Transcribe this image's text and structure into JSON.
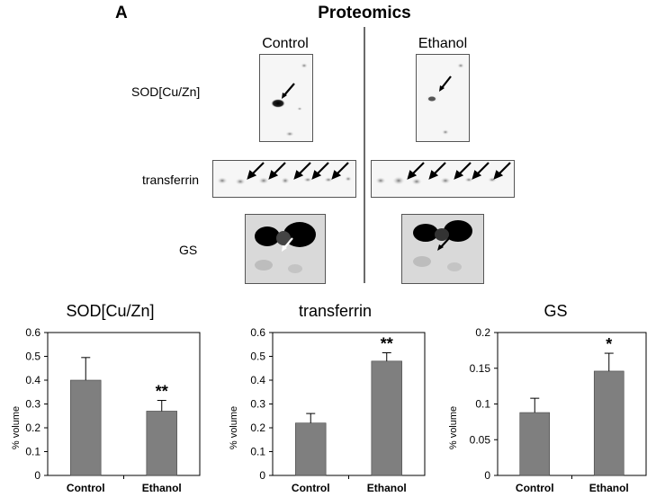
{
  "figure": {
    "panel_letter": "A",
    "title": "Proteomics",
    "column_labels": [
      "Control",
      "Ethanol"
    ],
    "row_labels": [
      "SOD[Cu/Zn]",
      "transferrin",
      "GS"
    ]
  },
  "chart_data": [
    {
      "type": "bar",
      "title": "SOD[Cu/Zn]",
      "categories": [
        "Control",
        "Ethanol"
      ],
      "values": [
        0.4,
        0.27
      ],
      "errors": [
        0.095,
        0.045
      ],
      "significance": [
        "",
        "**"
      ],
      "ylabel": "% volume",
      "ylim": [
        0,
        0.6
      ],
      "yticks": [
        0,
        0.1,
        0.2,
        0.3,
        0.4,
        0.5,
        0.6
      ],
      "ytick_labels": [
        "0",
        "0.1",
        "0.2",
        "0.3",
        "0.4",
        "0.5",
        "0.6"
      ],
      "bar_color": "#7f7f7f"
    },
    {
      "type": "bar",
      "title": "transferrin",
      "categories": [
        "Control",
        "Ethanol"
      ],
      "values": [
        0.22,
        0.48
      ],
      "errors": [
        0.04,
        0.035
      ],
      "significance": [
        "",
        "**"
      ],
      "ylabel": "% volume",
      "ylim": [
        0,
        0.6
      ],
      "yticks": [
        0,
        0.1,
        0.2,
        0.3,
        0.4,
        0.5,
        0.6
      ],
      "ytick_labels": [
        "0",
        "0.1",
        "0.2",
        "0.3",
        "0.4",
        "0.5",
        "0.6"
      ],
      "bar_color": "#7f7f7f"
    },
    {
      "type": "bar",
      "title": "GS",
      "categories": [
        "Control",
        "Ethanol"
      ],
      "values": [
        0.088,
        0.146
      ],
      "errors": [
        0.02,
        0.025
      ],
      "significance": [
        "",
        "*"
      ],
      "ylabel": "% volume",
      "ylim": [
        0,
        0.2
      ],
      "yticks": [
        0,
        0.05,
        0.1,
        0.15,
        0.2
      ],
      "ytick_labels": [
        "0",
        "0.05",
        "0.1",
        "0.15",
        "0.2"
      ],
      "bar_color": "#7f7f7f"
    }
  ]
}
